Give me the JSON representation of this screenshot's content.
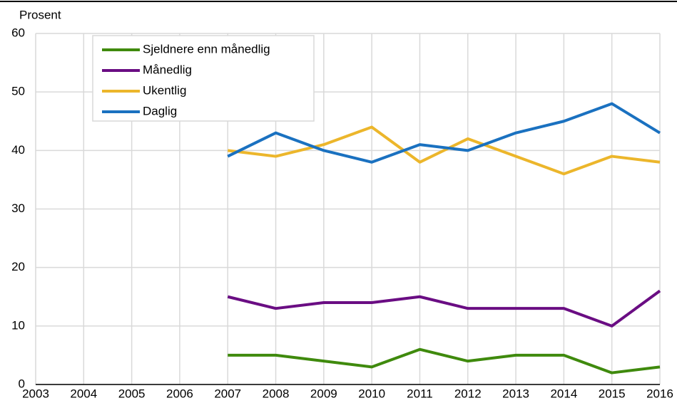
{
  "chart_data": {
    "type": "line",
    "y_label": "Prosent",
    "x": [
      2003,
      2004,
      2005,
      2006,
      2007,
      2008,
      2009,
      2010,
      2011,
      2012,
      2013,
      2014,
      2015,
      2016
    ],
    "xlim": [
      2003,
      2016
    ],
    "xticks": [
      2003,
      2004,
      2005,
      2006,
      2007,
      2008,
      2009,
      2010,
      2011,
      2012,
      2013,
      2014,
      2015,
      2016
    ],
    "ylim": [
      0,
      60
    ],
    "yticks": [
      0,
      10,
      20,
      30,
      40,
      50,
      60
    ],
    "grid": true,
    "legend": "top-left",
    "series": [
      {
        "name": "Sjeldnere enn månedlig",
        "color": "#3f8a0d",
        "values": [
          null,
          null,
          null,
          null,
          5,
          5,
          4,
          3,
          6,
          4,
          5,
          5,
          2,
          3
        ]
      },
      {
        "name": "Månedlig",
        "color": "#6a0d83",
        "values": [
          null,
          null,
          null,
          null,
          15,
          13,
          14,
          14,
          15,
          13,
          13,
          13,
          10,
          16
        ]
      },
      {
        "name": "Ukentlig",
        "color": "#ecb62b",
        "values": [
          null,
          null,
          null,
          null,
          40,
          39,
          41,
          44,
          38,
          42,
          39,
          36,
          39,
          38
        ]
      },
      {
        "name": "Daglig",
        "color": "#1a71c0",
        "values": [
          null,
          null,
          null,
          null,
          39,
          43,
          40,
          38,
          41,
          40,
          43,
          45,
          48,
          43
        ]
      }
    ]
  }
}
